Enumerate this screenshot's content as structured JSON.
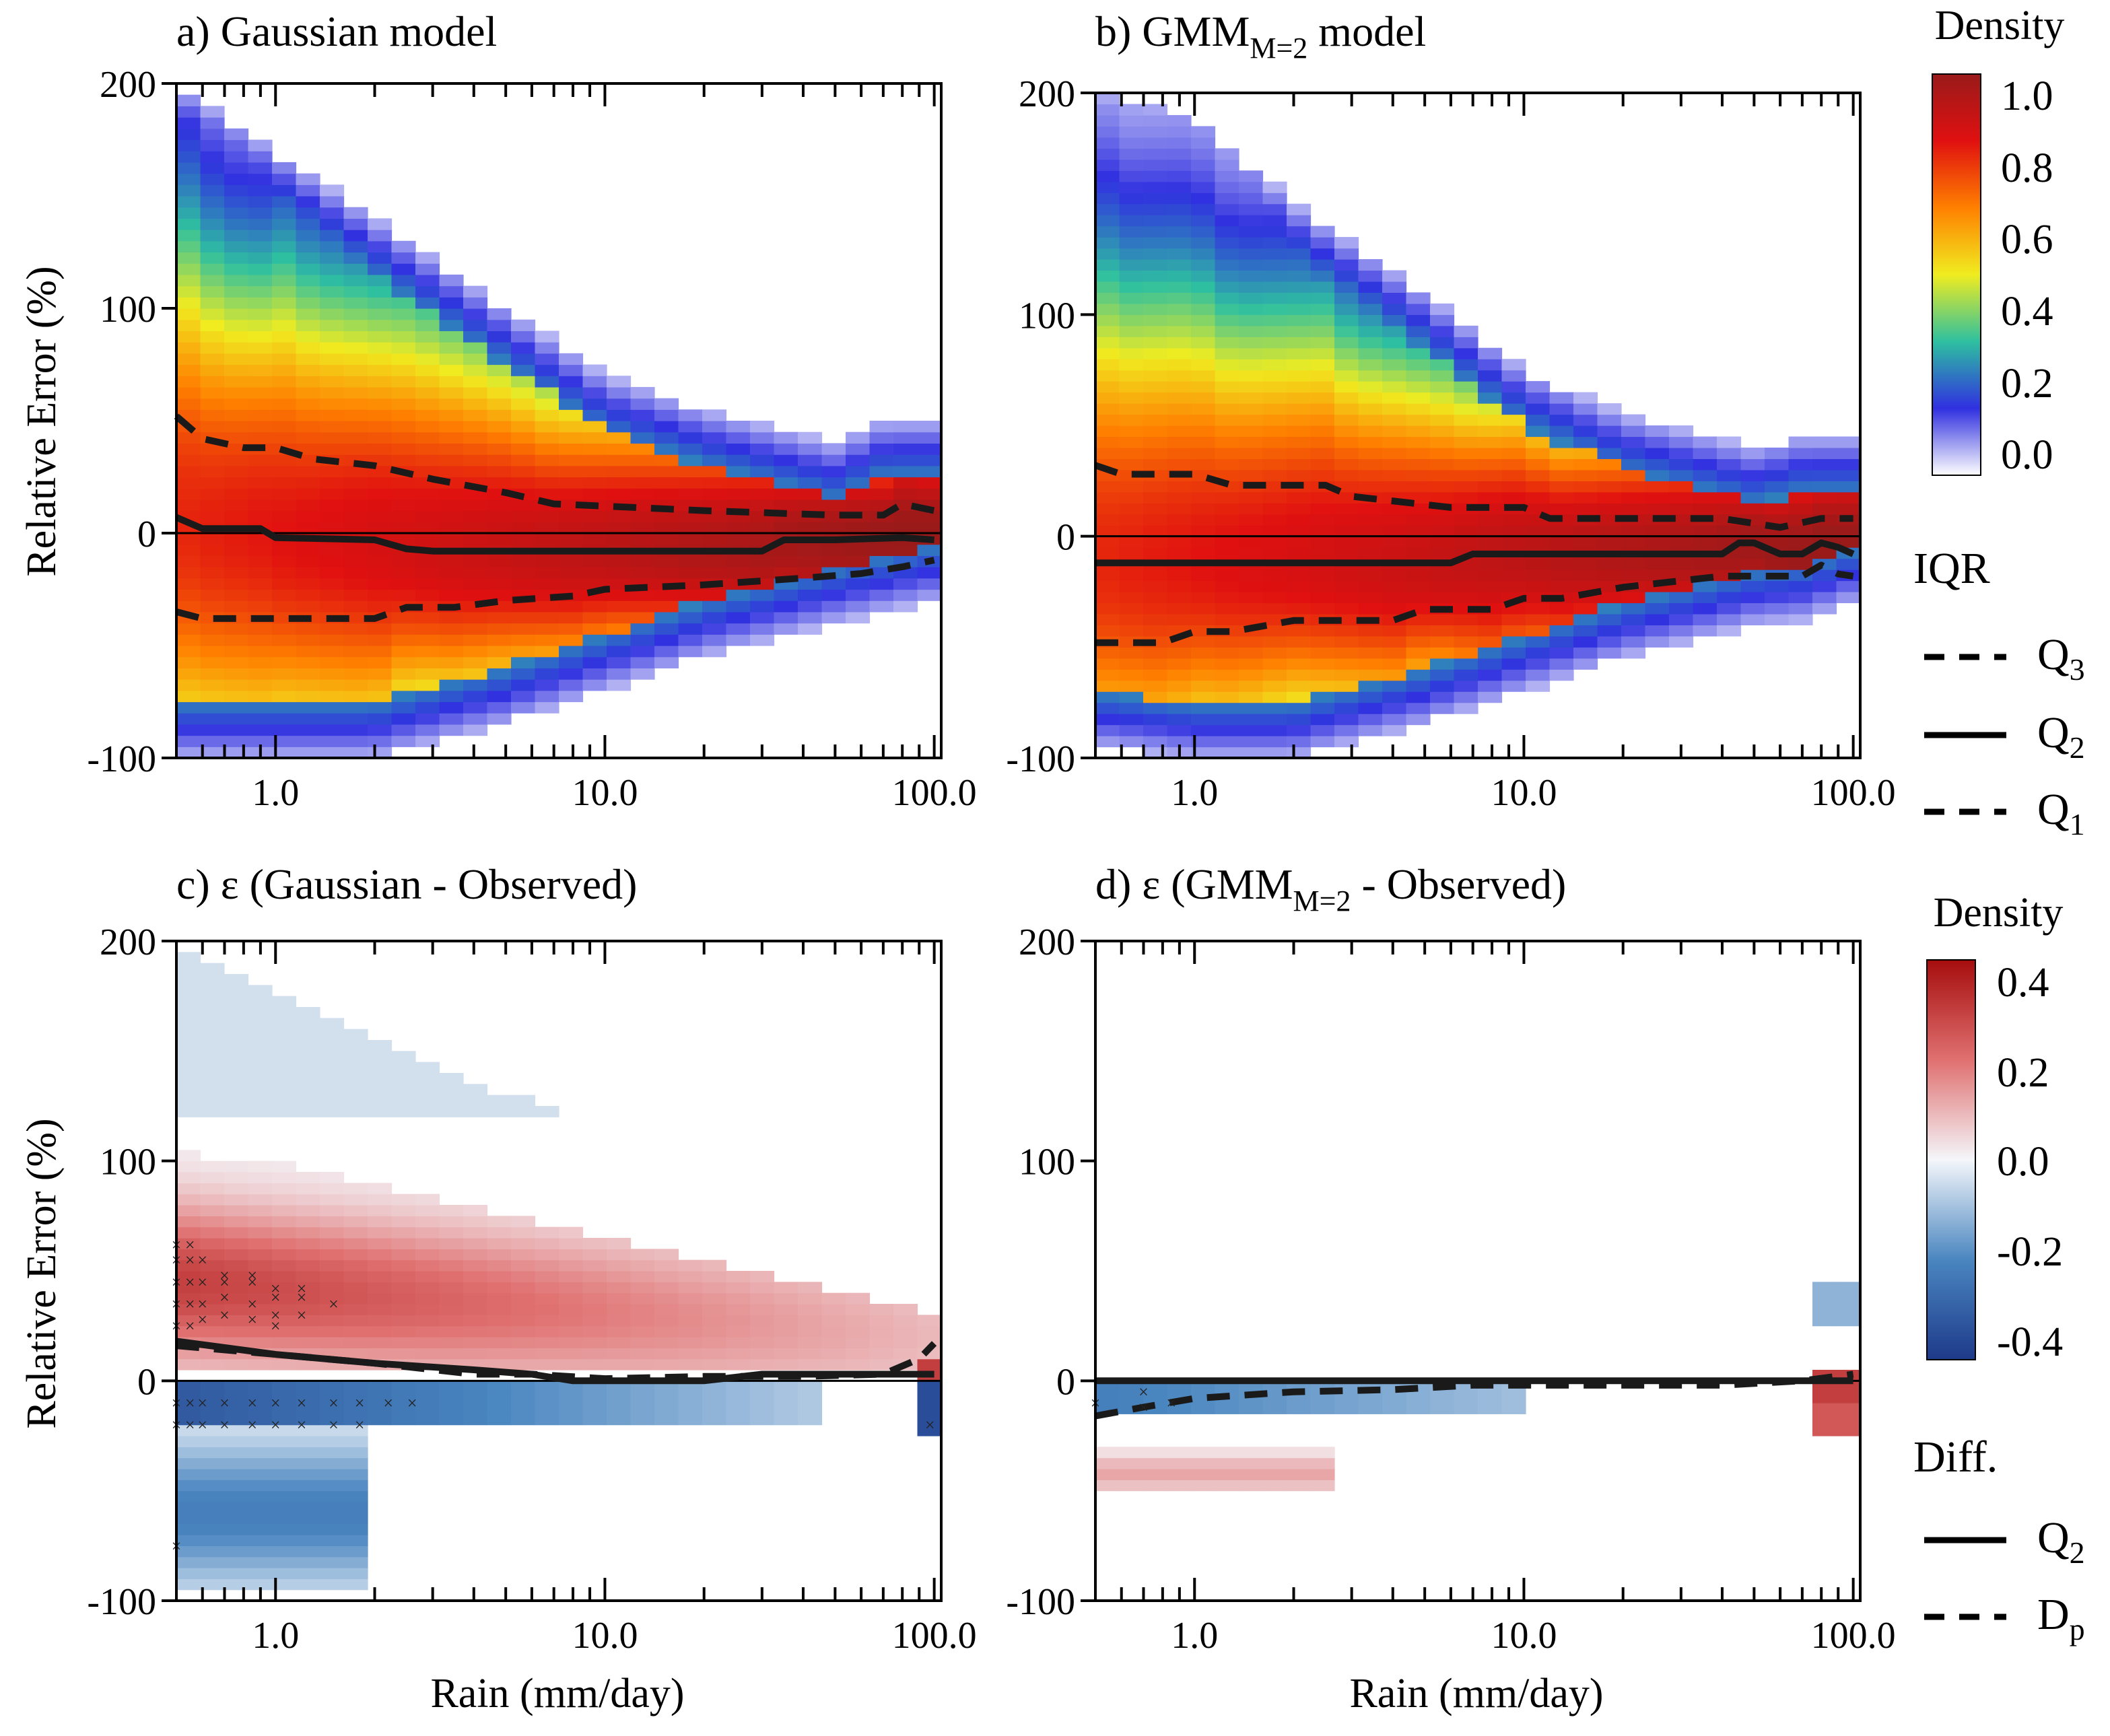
{
  "figure": {
    "ylabel": "Relative Error (%)",
    "xlabel": "Rain (mm/day)",
    "x_ticks": [
      "1.0",
      "10.0",
      "100.0"
    ],
    "y_ticks": [
      "200",
      "100",
      "0",
      "-100"
    ]
  },
  "colorbars": {
    "top": {
      "title": "Density",
      "ticks": [
        "1.0",
        "0.8",
        "0.6",
        "0.4",
        "0.2",
        "0.0"
      ],
      "colors": [
        "#ffffff",
        "#3030e0",
        "#2ec0a0",
        "#f0ec20",
        "#ff8000",
        "#e01010",
        "#9a1a1a"
      ]
    },
    "bottom": {
      "title": "Density",
      "ticks": [
        "0.4",
        "0.2",
        "0.0",
        "-0.2",
        "-0.4"
      ],
      "colors": [
        "#1e3a8a",
        "#4a86c0",
        "#f4f6fa",
        "#e07070",
        "#a60d0d"
      ]
    }
  },
  "legends": {
    "iqr": {
      "title": "IQR",
      "entries": [
        {
          "style": "dashed",
          "base": "Q",
          "sub": "3"
        },
        {
          "style": "solid",
          "base": "Q",
          "sub": "2"
        },
        {
          "style": "dashed",
          "base": "Q",
          "sub": "1"
        }
      ]
    },
    "diff": {
      "title": "Diff.",
      "entries": [
        {
          "style": "solid",
          "base": "Q",
          "sub": "2"
        },
        {
          "style": "dashed",
          "base": "D",
          "sub": "p"
        }
      ]
    }
  },
  "chart_data": [
    {
      "id": "a",
      "type": "heatmap",
      "title": "a) Gaussian model",
      "title_base": "a) Gaussian model",
      "title_sub": "",
      "title_after": "",
      "xlabel": "",
      "ylabel": "Relative Error (%)",
      "xscale": "log",
      "xlim": [
        0.5,
        105
      ],
      "ylim": [
        -100,
        200
      ],
      "colormap": "sequential",
      "zlim": [
        0,
        1
      ],
      "density_bands": {
        "x": [
          0.5,
          1,
          2,
          5,
          10,
          20,
          50,
          70,
          100
        ],
        "low": [
          -100,
          -100,
          -100,
          -85,
          -70,
          -55,
          -40,
          -35,
          -30
        ],
        "high": [
          200,
          170,
          140,
          100,
          70,
          55,
          40,
          50,
          50
        ]
      },
      "series": [
        {
          "name": "Q3",
          "style": "dashed",
          "x": [
            0.5,
            0.6,
            0.8,
            1.0,
            1.3,
            2.0,
            3.0,
            5.0,
            7.0,
            10,
            20,
            50,
            70,
            80,
            100
          ],
          "y": [
            52,
            42,
            38,
            38,
            33,
            30,
            24,
            18,
            13,
            12,
            10,
            8,
            8,
            13,
            10
          ]
        },
        {
          "name": "Q2",
          "style": "solid",
          "x": [
            0.5,
            0.6,
            0.9,
            1.0,
            2.0,
            2.5,
            3.0,
            10,
            20,
            30,
            35,
            50,
            80,
            100
          ],
          "y": [
            7,
            2,
            2,
            -2,
            -3,
            -7,
            -8,
            -8,
            -8,
            -8,
            -3,
            -3,
            -2,
            -3
          ]
        },
        {
          "name": "Q1",
          "style": "dashed",
          "x": [
            0.5,
            0.6,
            1.0,
            2.0,
            2.5,
            3.5,
            5,
            8,
            10,
            20,
            40,
            60,
            80,
            100
          ],
          "y": [
            -35,
            -38,
            -38,
            -38,
            -33,
            -33,
            -30,
            -28,
            -25,
            -23,
            -20,
            -18,
            -15,
            -12
          ]
        }
      ],
      "markers": []
    },
    {
      "id": "b",
      "type": "heatmap",
      "title": "b) GMM_M=2 model",
      "title_base": "b) GMM",
      "title_sub": "M=2",
      "title_after": " model",
      "xlabel": "",
      "ylabel": "",
      "xscale": "log",
      "xlim": [
        0.5,
        105
      ],
      "ylim": [
        -100,
        200
      ],
      "colormap": "sequential",
      "zlim": [
        0,
        1
      ],
      "density_bands": {
        "x": [
          0.5,
          1,
          2,
          5,
          10,
          20,
          50,
          70,
          100
        ],
        "low": [
          -95,
          -100,
          -100,
          -85,
          -70,
          -55,
          -40,
          -38,
          -30
        ],
        "high": [
          200,
          190,
          150,
          110,
          75,
          55,
          40,
          45,
          45
        ]
      },
      "series": [
        {
          "name": "Q3",
          "style": "dashed",
          "x": [
            0.5,
            0.6,
            1.0,
            1.3,
            2.5,
            3.0,
            6,
            10,
            12,
            40,
            60,
            80,
            100
          ],
          "y": [
            32,
            28,
            28,
            23,
            23,
            18,
            13,
            13,
            8,
            8,
            4,
            8,
            8
          ]
        },
        {
          "name": "Q2",
          "style": "solid",
          "x": [
            0.5,
            6,
            7,
            40,
            45,
            50,
            60,
            70,
            80,
            90,
            100
          ],
          "y": [
            -12,
            -12,
            -8,
            -8,
            -3,
            -3,
            -8,
            -8,
            -3,
            -5,
            -8
          ]
        },
        {
          "name": "Q1",
          "style": "dashed",
          "x": [
            0.5,
            0.8,
            1.0,
            1.3,
            2.0,
            4.0,
            5.0,
            8.0,
            10.0,
            13.0,
            20,
            40,
            70,
            80,
            90,
            100
          ],
          "y": [
            -48,
            -48,
            -43,
            -43,
            -38,
            -38,
            -33,
            -33,
            -28,
            -28,
            -23,
            -18,
            -18,
            -13,
            -17,
            -18
          ]
        }
      ],
      "markers": []
    },
    {
      "id": "c",
      "type": "heatmap",
      "title": "c) ε (Gaussian - Observed)",
      "title_base": "c) ε (Gaussian - Observed)",
      "title_sub": "",
      "title_after": "",
      "xlabel": "Rain (mm/day)",
      "ylabel": "Relative Error (%)",
      "xscale": "log",
      "xlim": [
        0.5,
        105
      ],
      "ylim": [
        -100,
        200
      ],
      "colormap": "diverging",
      "zlim": [
        -0.4,
        0.4
      ],
      "series": [
        {
          "name": "Q2",
          "style": "solid",
          "x": [
            0.5,
            1.0,
            2.0,
            4.0,
            6.0,
            8.0,
            12.0,
            20,
            30,
            50,
            70,
            100
          ],
          "y": [
            18,
            12,
            8,
            5,
            3,
            0,
            0,
            0,
            3,
            3,
            3,
            3
          ]
        },
        {
          "name": "Dp",
          "style": "dashed",
          "x": [
            0.5,
            1.0,
            2.0,
            4.0,
            6.0,
            10,
            20,
            40,
            70,
            90,
            100
          ],
          "y": [
            16,
            12,
            8,
            3,
            3,
            1,
            2,
            2,
            3,
            10,
            17
          ]
        }
      ],
      "markers": [
        {
          "x": 0.5,
          "y": [
            -10,
            -20,
            25,
            35,
            45,
            55,
            62
          ]
        },
        {
          "x": 0.55,
          "y": [
            -20,
            -10,
            25,
            35,
            45,
            55,
            62
          ]
        },
        {
          "x": 0.6,
          "y": [
            -10,
            -20,
            28,
            35,
            45,
            55
          ]
        },
        {
          "x": 0.7,
          "y": [
            -10,
            -20,
            30,
            38,
            45,
            48
          ]
        },
        {
          "x": 0.85,
          "y": [
            -10,
            -20,
            28,
            35,
            45,
            48
          ]
        },
        {
          "x": 1.0,
          "y": [
            -10,
            -20,
            25,
            30,
            38,
            42
          ]
        },
        {
          "x": 1.2,
          "y": [
            -10,
            -20,
            30,
            38,
            42
          ]
        },
        {
          "x": 1.5,
          "y": [
            -10,
            -20,
            35
          ]
        },
        {
          "x": 1.8,
          "y": [
            -10,
            -20
          ]
        },
        {
          "x": 2.2,
          "y": [
            -10
          ]
        },
        {
          "x": 2.6,
          "y": [
            -10
          ]
        },
        {
          "x": 0.5,
          "y": [
            -75
          ]
        },
        {
          "x": 97,
          "y": [
            -20
          ]
        }
      ]
    },
    {
      "id": "d",
      "type": "heatmap",
      "title": "d) ε (GMM_M=2 - Observed)",
      "title_base": "d) ε (GMM",
      "title_sub": "M=2",
      "title_after": " - Observed)",
      "xlabel": "Rain (mm/day)",
      "ylabel": "",
      "xscale": "log",
      "xlim": [
        0.5,
        105
      ],
      "ylim": [
        -100,
        200
      ],
      "colormap": "diverging",
      "zlim": [
        -0.4,
        0.4
      ],
      "series": [
        {
          "name": "Q2",
          "style": "solid",
          "x": [
            0.5,
            100
          ],
          "y": [
            0,
            0
          ]
        },
        {
          "name": "Dp",
          "style": "dashed",
          "x": [
            0.5,
            0.7,
            1.0,
            2.0,
            4.0,
            7.0,
            12,
            20,
            40,
            70,
            100
          ],
          "y": [
            -16,
            -12,
            -8,
            -5,
            -4,
            -2,
            -2,
            -2,
            -2,
            0,
            3
          ]
        }
      ],
      "markers": [
        {
          "x": 0.5,
          "y": [
            -10
          ]
        },
        {
          "x": 0.7,
          "y": [
            -5,
            -12
          ]
        },
        {
          "x": 0.85,
          "y": [
            -10
          ]
        }
      ]
    }
  ]
}
